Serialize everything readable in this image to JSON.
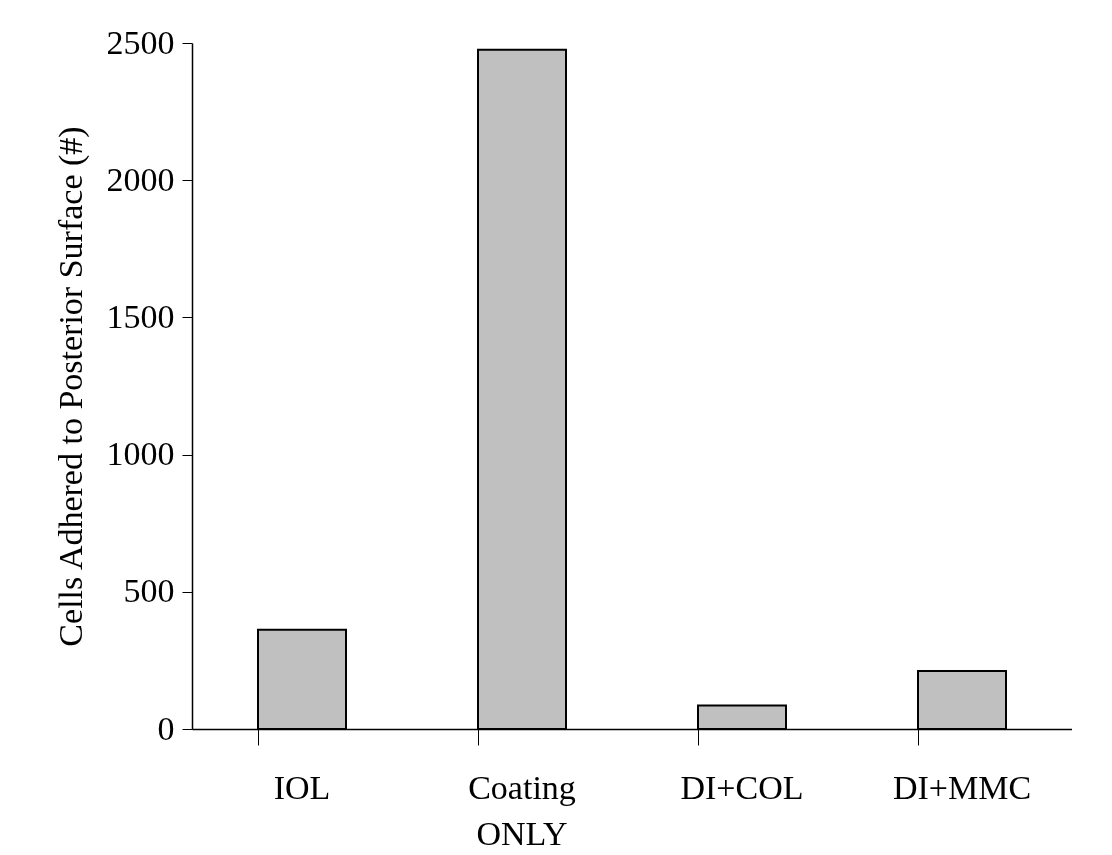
{
  "chart_data": {
    "type": "bar",
    "ylabel": "Cells Adhered to Posterior Surface (#)",
    "categories": [
      "IOL",
      "Coating ONLY",
      "DI+COL",
      "DI+MMC"
    ],
    "values": [
      362,
      2475,
      86,
      211
    ],
    "color": "#c0c0c0",
    "ylim": [
      0,
      2500
    ],
    "yticks": [
      0,
      500,
      1000,
      1500,
      2000,
      2500
    ],
    "grid": false
  }
}
